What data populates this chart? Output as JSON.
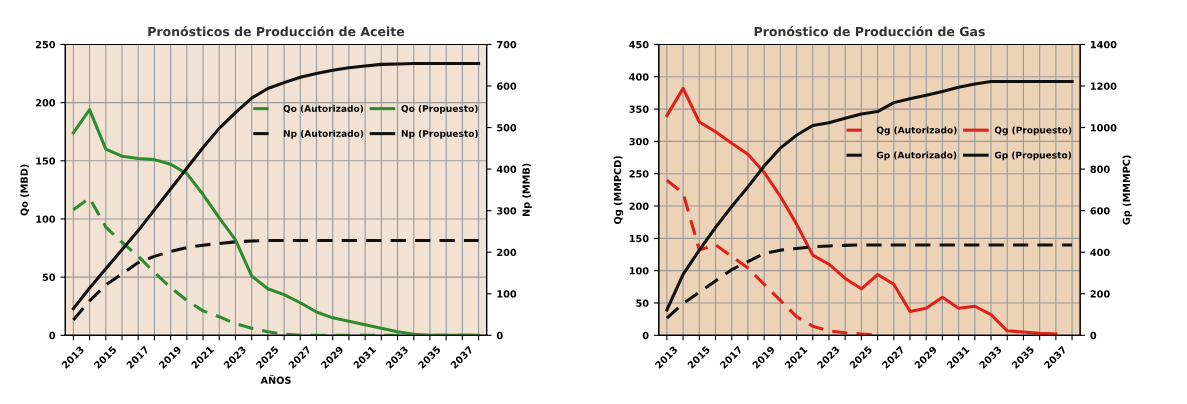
{
  "chart_data": [
    {
      "type": "line",
      "title": "Pronósticos de Producción de Aceite",
      "xlabel": "AÑOS",
      "ylabel": "Qo (MBD)",
      "y2label": "Np (MMB)",
      "x": [
        2013,
        2014,
        2015,
        2016,
        2017,
        2018,
        2019,
        2020,
        2021,
        2022,
        2023,
        2024,
        2025,
        2026,
        2027,
        2028,
        2029,
        2030,
        2031,
        2032,
        2033,
        2034,
        2035,
        2036,
        2037,
        2038
      ],
      "xlim": [
        2012.5,
        2038.5
      ],
      "xticks": [
        2013,
        {
          "value": 2014,
          "label": null
        },
        2015,
        {
          "value": 2016,
          "label": null
        },
        2017,
        {
          "value": 2018,
          "label": null
        },
        2019,
        {
          "value": 2020,
          "label": null
        },
        2021,
        {
          "value": 2022,
          "label": null
        },
        2023,
        {
          "value": 2024,
          "label": null
        },
        2025,
        {
          "value": 2026,
          "label": null
        },
        2027,
        {
          "value": 2028,
          "label": null
        },
        2029,
        {
          "value": 2030,
          "label": null
        },
        2031,
        {
          "value": 2032,
          "label": null
        },
        2033,
        {
          "value": 2034,
          "label": null
        },
        2035,
        {
          "value": 2036,
          "label": null
        },
        2037,
        {
          "value": 2038,
          "label": null
        }
      ],
      "ylim": [
        0,
        250
      ],
      "yticks": [
        0,
        50,
        100,
        150,
        200,
        250
      ],
      "y2lim": [
        0,
        700
      ],
      "y2ticks": [
        0,
        100,
        200,
        300,
        400,
        500,
        600,
        700
      ],
      "grid": true,
      "legend": "upper right",
      "series": [
        {
          "name": "Qo (Autorizado)",
          "color": "#2e8b2e",
          "line_style": "dashed",
          "values": [
            108,
            118,
            93,
            80,
            68,
            54,
            41,
            30,
            21,
            16,
            10,
            6,
            3,
            1,
            0,
            0,
            0,
            0,
            0,
            0,
            0,
            0,
            0,
            0,
            0,
            0
          ]
        },
        {
          "name": "Np (Autorizado)",
          "color": "#111111",
          "line_style": "dashed",
          "axis": "y2",
          "values": [
            37,
            83,
            121,
            148,
            175,
            190,
            202,
            211,
            217,
            221,
            225,
            227,
            228,
            228,
            228,
            228,
            228,
            228,
            228,
            228,
            228,
            228,
            228,
            228,
            228,
            228
          ]
        },
        {
          "name": "Qo (Propuesto)",
          "color": "#2e8b2e",
          "line_style": "solid",
          "values": [
            174,
            194,
            160,
            154,
            152,
            151,
            147,
            139,
            121,
            101,
            82,
            51,
            40,
            35,
            28,
            20,
            15,
            12,
            9,
            6,
            3,
            1,
            0,
            0,
            0,
            0
          ]
        },
        {
          "name": "Np (Propuesto)",
          "color": "#111111",
          "line_style": "solid",
          "axis": "y2",
          "values": [
            64,
            114,
            160,
            206,
            252,
            302,
            352,
            402,
            452,
            498,
            536,
            571,
            594,
            608,
            621,
            630,
            638,
            644,
            648,
            652,
            653,
            654,
            654,
            654,
            654,
            654
          ]
        }
      ]
    },
    {
      "type": "line",
      "title": "Pronóstico de Producción de Gas",
      "ylabel": "Qg (MMPCD)",
      "y2label": "Gp (MMMPC)",
      "x": [
        2013,
        2014,
        2015,
        2016,
        2017,
        2018,
        2019,
        2020,
        2021,
        2022,
        2023,
        2024,
        2025,
        2026,
        2027,
        2028,
        2029,
        2030,
        2031,
        2032,
        2033,
        2034,
        2035,
        2036,
        2037,
        2038
      ],
      "xlim": [
        2012.5,
        2038.5
      ],
      "xticks": [
        2013,
        {
          "value": 2014,
          "label": null
        },
        2015,
        {
          "value": 2016,
          "label": null
        },
        2017,
        {
          "value": 2018,
          "label": null
        },
        2019,
        {
          "value": 2020,
          "label": null
        },
        2021,
        {
          "value": 2022,
          "label": null
        },
        2023,
        {
          "value": 2024,
          "label": null
        },
        2025,
        {
          "value": 2026,
          "label": null
        },
        2027,
        {
          "value": 2028,
          "label": null
        },
        2029,
        {
          "value": 2030,
          "label": null
        },
        2031,
        {
          "value": 2032,
          "label": null
        },
        2033,
        {
          "value": 2034,
          "label": null
        },
        2035,
        {
          "value": 2036,
          "label": null
        },
        2037,
        {
          "value": 2038,
          "label": null
        }
      ],
      "ylim": [
        0,
        450
      ],
      "yticks": [
        0,
        50,
        100,
        150,
        200,
        250,
        300,
        350,
        400,
        450
      ],
      "y2lim": [
        0,
        1400
      ],
      "y2ticks": [
        0,
        200,
        400,
        600,
        800,
        1000,
        1200,
        1400
      ],
      "grid": true,
      "legend": "right",
      "series": [
        {
          "name": "Qg (Autorizado)",
          "color": "#e0201b",
          "line_style": "dashed",
          "values": [
            240,
            220,
            132,
            140,
            122,
            104,
            79,
            54,
            29,
            14,
            7,
            4,
            2,
            0,
            null,
            null,
            null,
            null,
            null,
            null,
            null,
            null,
            null,
            null,
            null,
            null
          ]
        },
        {
          "name": "Gp (Autorizado)",
          "color": "#111111",
          "line_style": "dashed",
          "axis": "y2",
          "values": [
            83,
            153,
            207,
            262,
            316,
            355,
            394,
            410,
            418,
            426,
            430,
            433,
            435,
            435,
            435,
            435,
            435,
            435,
            435,
            435,
            435,
            435,
            435,
            435,
            435,
            435
          ]
        },
        {
          "name": "Qg (Propuesto)",
          "color": "#e0201b",
          "line_style": "solid",
          "values": [
            340,
            382,
            330,
            315,
            297,
            280,
            252,
            215,
            172,
            124,
            110,
            88,
            72,
            94,
            79,
            37,
            42,
            59,
            42,
            45,
            32,
            7,
            5,
            3,
            2,
            null
          ]
        },
        {
          "name": "Gp (Propuesto)",
          "color": "#111111",
          "line_style": "solid",
          "axis": "y2",
          "values": [
            122,
            293,
            410,
            519,
            620,
            714,
            815,
            901,
            963,
            1010,
            1023,
            1045,
            1065,
            1077,
            1120,
            1139,
            1155,
            1174,
            1194,
            1210,
            1222,
            1222,
            1222,
            1222,
            1222,
            1222
          ]
        }
      ]
    }
  ]
}
